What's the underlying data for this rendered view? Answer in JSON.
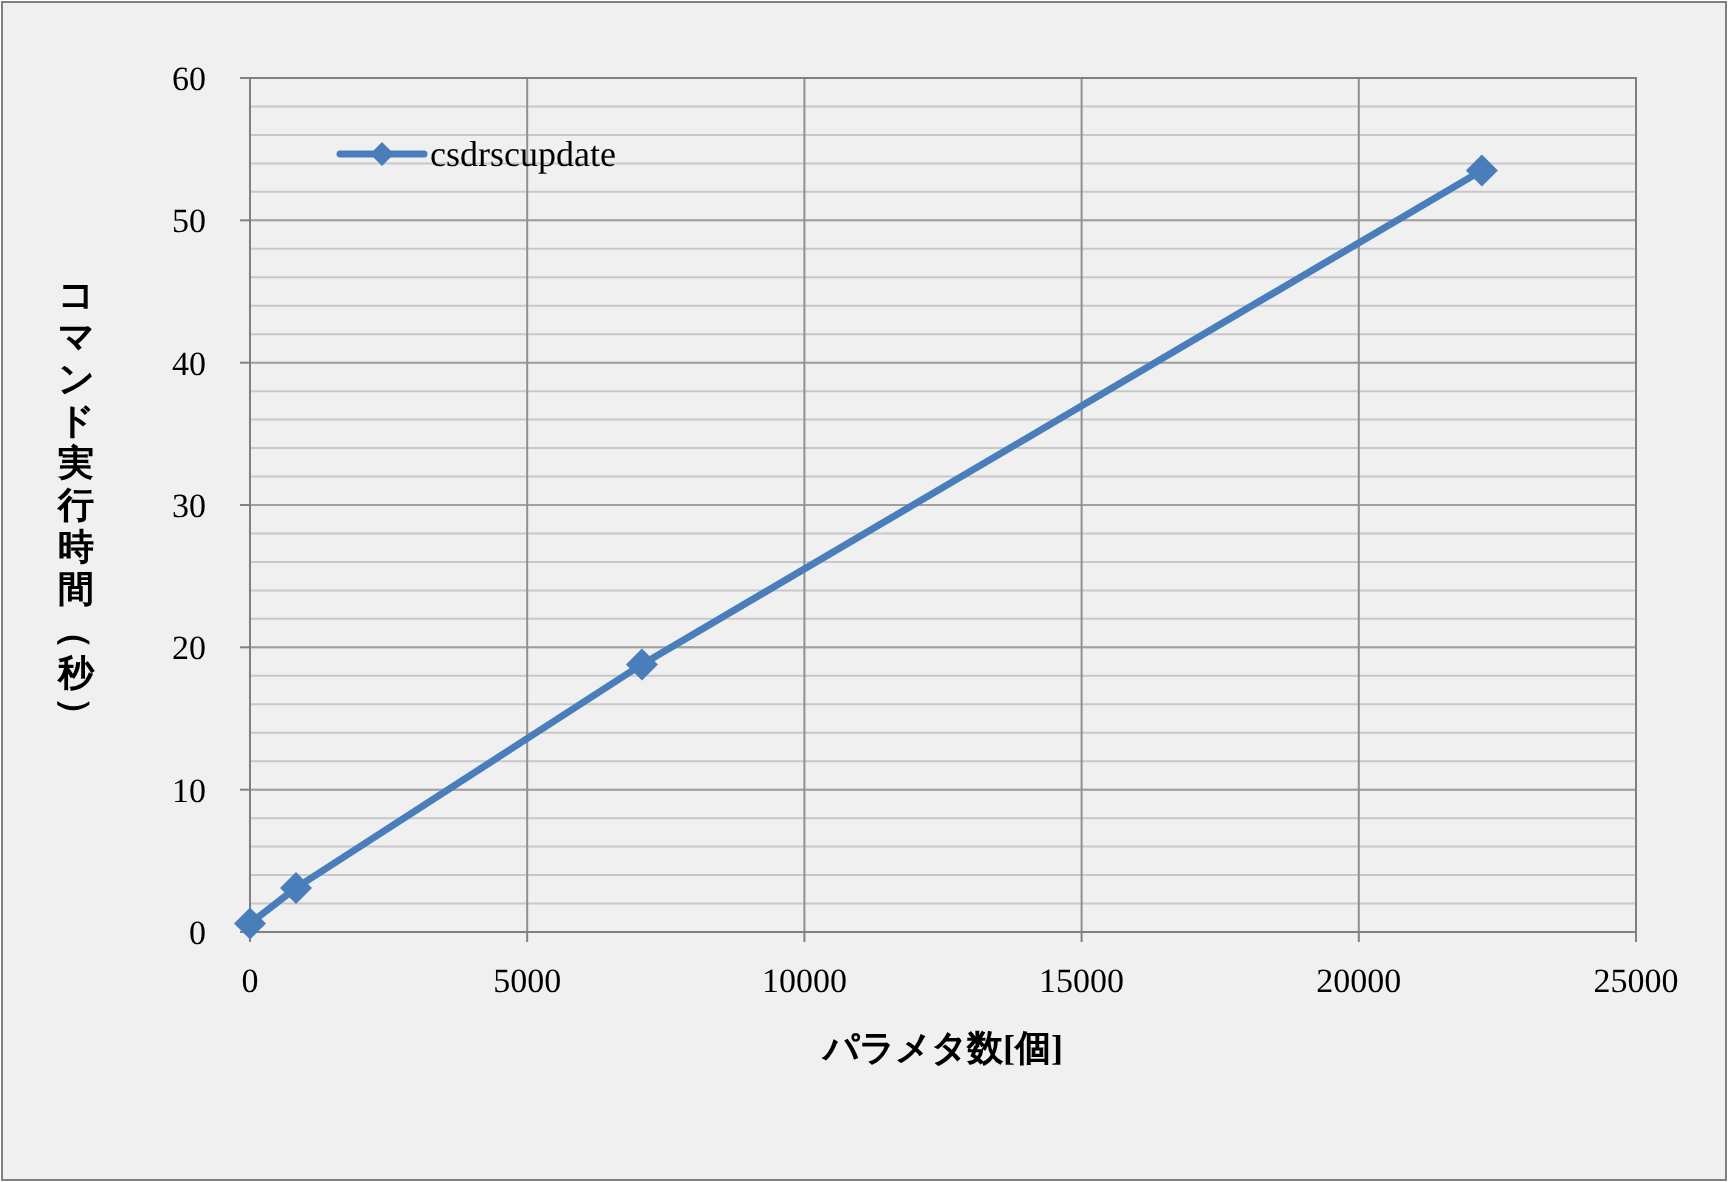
{
  "chart_data": {
    "type": "line",
    "xlabel": "パラメタ数[個]",
    "ylabel": "コマンド実行時間（秒）",
    "series": [
      {
        "name": "csdrscupdate",
        "color": "#4a7ebb",
        "x": [
          0,
          830,
          7070,
          22220
        ],
        "values": [
          0.6,
          3.1,
          18.8,
          53.5
        ]
      }
    ],
    "xlim": [
      0,
      25000
    ],
    "xticks": [
      0,
      5000,
      10000,
      15000,
      20000,
      25000
    ],
    "ylim": [
      0,
      60
    ],
    "yticks": [
      0,
      10,
      20,
      30,
      40,
      50,
      60
    ],
    "grid": true,
    "legend": "top left",
    "marker": "diamond",
    "line_style": "solid"
  }
}
